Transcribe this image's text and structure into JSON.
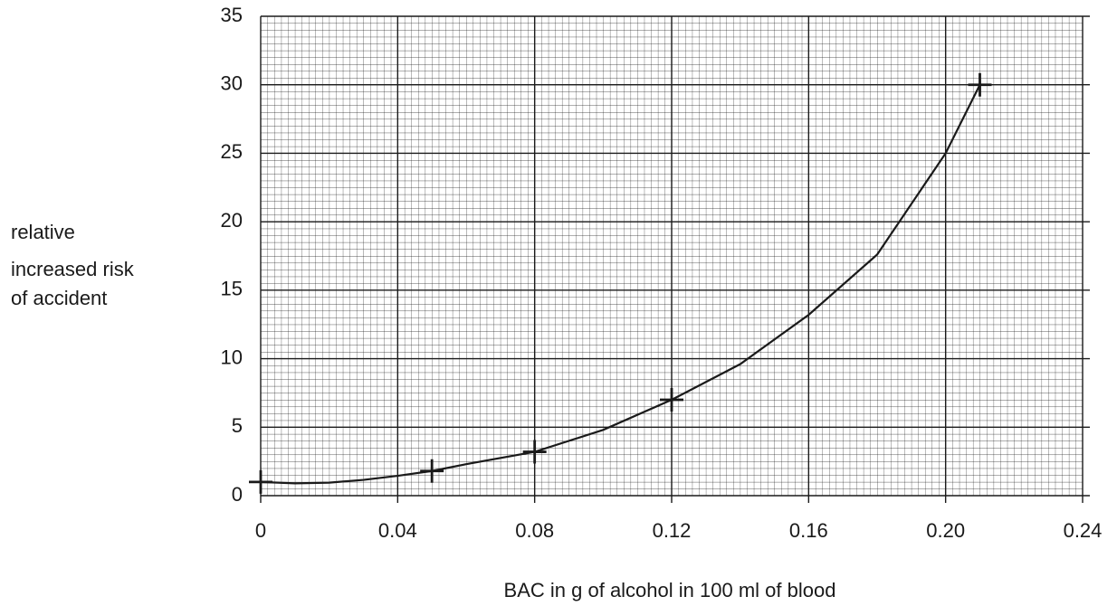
{
  "chart_data": {
    "type": "scatter",
    "x_label": "BAC in g of alcohol in 100 ml of blood",
    "y_label": [
      "relative",
      "increased risk",
      "of accident"
    ],
    "points": {
      "x": [
        0,
        0.05,
        0.08,
        0.12,
        0.21
      ],
      "y": [
        1,
        1.8,
        3.2,
        7,
        30
      ]
    },
    "curve": {
      "x": [
        0,
        0.01,
        0.02,
        0.03,
        0.04,
        0.05,
        0.06,
        0.08,
        0.1,
        0.12,
        0.14,
        0.16,
        0.18,
        0.2,
        0.21
      ],
      "y": [
        1,
        0.9,
        0.95,
        1.15,
        1.45,
        1.8,
        2.3,
        3.2,
        4.8,
        7,
        9.6,
        13.2,
        17.6,
        25,
        30
      ]
    },
    "color": "#1a1a1a",
    "xlim": [
      0,
      0.24
    ],
    "ylim": [
      0,
      35
    ],
    "xticks": [
      0,
      0.04,
      0.08,
      0.12,
      0.16,
      {
        "value": 0.2,
        "label": "0.20"
      },
      0.24
    ],
    "yticks": [
      0,
      5,
      10,
      15,
      20,
      25,
      30,
      35
    ],
    "grid": true
  }
}
